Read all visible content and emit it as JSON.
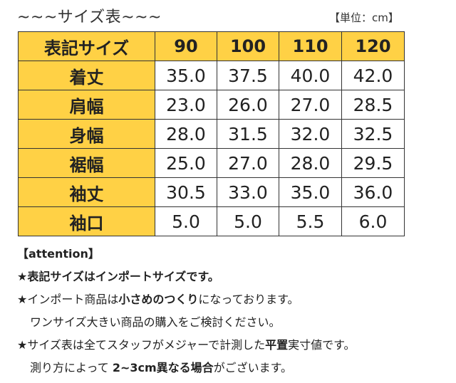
{
  "title": "~~~サイズ表~~~",
  "unit_label": "【単位：cm】",
  "table": {
    "corner_label": "表記サイズ",
    "sizes": [
      "90",
      "100",
      "110",
      "120"
    ],
    "rows": [
      {
        "label": "着丈",
        "values": [
          "35.0",
          "37.5",
          "40.0",
          "42.0"
        ]
      },
      {
        "label": "肩幅",
        "values": [
          "23.0",
          "26.0",
          "27.0",
          "28.5"
        ]
      },
      {
        "label": "身幅",
        "values": [
          "28.0",
          "31.5",
          "32.0",
          "32.5"
        ]
      },
      {
        "label": "裾幅",
        "values": [
          "25.0",
          "27.0",
          "28.0",
          "29.5"
        ]
      },
      {
        "label": "袖丈",
        "values": [
          "30.5",
          "33.0",
          "35.0",
          "36.0"
        ]
      },
      {
        "label": "袖口",
        "values": [
          "5.0",
          "5.0",
          "5.5",
          "6.0"
        ]
      }
    ]
  },
  "colors": {
    "header_bg": "#ffd145",
    "border": "#333333"
  },
  "notes": {
    "attention_label": "【attention】",
    "line1": "★表記サイズはインポートサイズです。",
    "line2": {
      "pre": "★インポート商品は",
      "bold": "小さめのつくり",
      "post": "になっております。"
    },
    "line3": "ワンサイズ大きい商品の購入をご検討ください。",
    "line4": {
      "pre": "★サイズ表は全てスタッフがメジャーで計測した",
      "bold": "平置",
      "post": "実寸値です。"
    },
    "line5": {
      "pre": "測り方によって ",
      "bold": "2~3cm異なる場合",
      "post": "がございます。"
    }
  }
}
